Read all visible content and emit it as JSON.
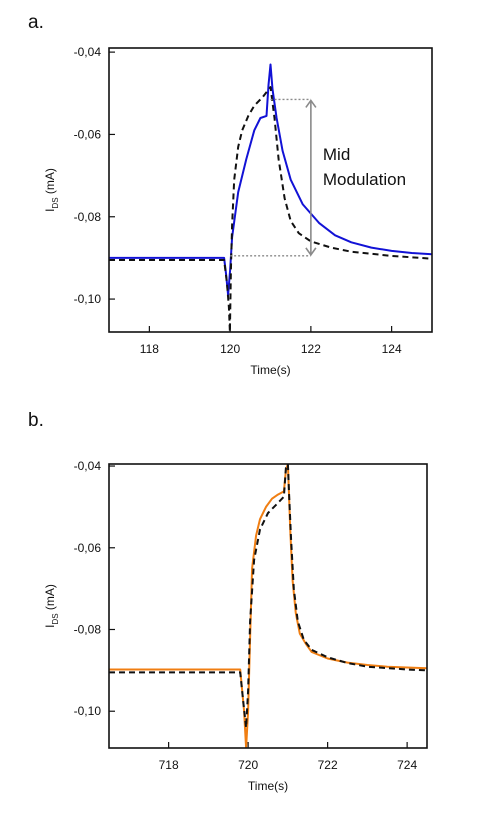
{
  "panels": {
    "a": {
      "label": "a."
    },
    "b": {
      "label": "b."
    }
  },
  "chart_data": [
    {
      "type": "line",
      "panel": "a",
      "xlabel": "Time(s)",
      "ylabel": "I",
      "ylabel_sub": "DS",
      "ylabel_unit": " (mA)",
      "xlim": [
        117,
        125
      ],
      "ylim": [
        -0.108,
        -0.039
      ],
      "xticks": [
        118,
        120,
        122,
        124
      ],
      "yticks": [
        -0.04,
        -0.06,
        -0.08,
        -0.1
      ],
      "ytick_labels": [
        "-0,04",
        "-0,06",
        "-0,08",
        "-0,10"
      ],
      "grid": false,
      "annotation": {
        "lines": [
          "Mid",
          "Modulation"
        ]
      },
      "series": [
        {
          "style": "solid",
          "color": "#1212d6",
          "x": [
            117,
            119.85,
            119.9,
            119.95,
            120.0,
            120.05,
            120.2,
            120.4,
            120.6,
            120.75,
            120.9,
            120.95,
            121.0,
            121.05,
            121.15,
            121.3,
            121.5,
            121.8,
            122.2,
            122.6,
            123.0,
            123.5,
            124.0,
            124.5,
            125
          ],
          "y": [
            -0.09,
            -0.09,
            -0.094,
            -0.099,
            -0.093,
            -0.085,
            -0.074,
            -0.066,
            -0.059,
            -0.056,
            -0.0555,
            -0.048,
            -0.043,
            -0.049,
            -0.056,
            -0.064,
            -0.071,
            -0.077,
            -0.0815,
            -0.0845,
            -0.0862,
            -0.0875,
            -0.0883,
            -0.0888,
            -0.0891
          ]
        },
        {
          "style": "dashed",
          "color": "#111111",
          "x": [
            117,
            119.85,
            119.92,
            119.97,
            119.995,
            120.02,
            120.05,
            120.1,
            120.2,
            120.3,
            120.45,
            120.6,
            120.8,
            121.0,
            121.1,
            121.2,
            121.35,
            121.5,
            121.7,
            122.0,
            122.5,
            123.0,
            123.5,
            124.0,
            125
          ],
          "y": [
            -0.0905,
            -0.0905,
            -0.096,
            -0.102,
            -0.108,
            -0.093,
            -0.082,
            -0.071,
            -0.063,
            -0.059,
            -0.0555,
            -0.053,
            -0.051,
            -0.0485,
            -0.056,
            -0.066,
            -0.0755,
            -0.081,
            -0.084,
            -0.086,
            -0.0875,
            -0.0885,
            -0.089,
            -0.0895,
            -0.0902
          ]
        }
      ]
    },
    {
      "type": "line",
      "panel": "b",
      "xlabel": "Time(s)",
      "ylabel": "I",
      "ylabel_sub": "DS",
      "ylabel_unit": " (mA)",
      "xlim": [
        716.5,
        724.5
      ],
      "ylim": [
        -0.109,
        -0.0395
      ],
      "xticks": [
        718,
        720,
        722,
        724
      ],
      "yticks": [
        -0.04,
        -0.06,
        -0.08,
        -0.1
      ],
      "ytick_labels": [
        "-0,04",
        "-0,06",
        "-0,08",
        "-0,10"
      ],
      "grid": false,
      "series": [
        {
          "style": "solid",
          "color": "#f07e12",
          "x": [
            716.5,
            719.8,
            719.85,
            719.9,
            719.95,
            720.0,
            720.05,
            720.1,
            720.2,
            720.3,
            720.45,
            720.6,
            720.75,
            720.9,
            720.95,
            721.0,
            721.02,
            721.06,
            721.12,
            721.2,
            721.3,
            721.45,
            721.6,
            722.0,
            722.5,
            723.0,
            723.5,
            724.0,
            724.5
          ],
          "y": [
            -0.0898,
            -0.0898,
            -0.095,
            -0.1,
            -0.109,
            -0.1,
            -0.082,
            -0.065,
            -0.057,
            -0.053,
            -0.05,
            -0.048,
            -0.047,
            -0.0462,
            -0.041,
            -0.0395,
            -0.045,
            -0.056,
            -0.068,
            -0.076,
            -0.081,
            -0.0835,
            -0.0855,
            -0.0871,
            -0.0881,
            -0.0887,
            -0.0891,
            -0.0893,
            -0.0895
          ]
        },
        {
          "style": "dashed",
          "color": "#111111",
          "x": [
            716.5,
            719.8,
            719.88,
            719.95,
            720.0,
            720.05,
            720.15,
            720.3,
            720.5,
            720.7,
            720.9,
            720.95,
            721.0,
            721.03,
            721.08,
            721.15,
            721.25,
            721.4,
            721.6,
            722.0,
            722.5,
            723.0,
            724.0,
            724.5
          ],
          "y": [
            -0.0905,
            -0.0905,
            -0.098,
            -0.104,
            -0.095,
            -0.078,
            -0.063,
            -0.0555,
            -0.0515,
            -0.0495,
            -0.0475,
            -0.0405,
            -0.0395,
            -0.047,
            -0.058,
            -0.07,
            -0.078,
            -0.0825,
            -0.085,
            -0.0868,
            -0.0882,
            -0.0891,
            -0.0898,
            -0.09
          ]
        }
      ]
    }
  ]
}
